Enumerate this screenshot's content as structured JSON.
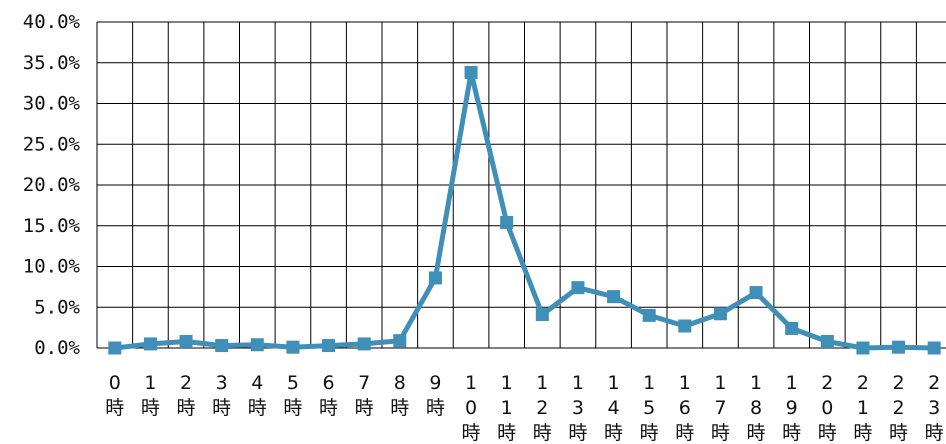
{
  "chart_data": {
    "type": "line",
    "title": "",
    "xlabel": "",
    "ylabel": "",
    "categories": [
      "0時",
      "1時",
      "2時",
      "3時",
      "4時",
      "5時",
      "6時",
      "7時",
      "8時",
      "9時",
      "10時",
      "11時",
      "12時",
      "13時",
      "14時",
      "15時",
      "16時",
      "17時",
      "18時",
      "19時",
      "20時",
      "21時",
      "22時",
      "23時"
    ],
    "series": [
      {
        "values": [
          0.0,
          0.5,
          0.8,
          0.3,
          0.4,
          0.1,
          0.3,
          0.5,
          0.9,
          8.6,
          33.8,
          15.4,
          4.1,
          7.4,
          6.3,
          4.0,
          2.7,
          4.2,
          6.8,
          2.4,
          0.8,
          0.0,
          0.1,
          0.0
        ],
        "color": "#3f8fb9"
      }
    ],
    "ylim": [
      0,
      40
    ],
    "yticks": [
      "0.0%",
      "5.0%",
      "10.0%",
      "15.0%",
      "20.0%",
      "25.0%",
      "30.0%",
      "35.0%",
      "40.0%"
    ],
    "grid": true,
    "legend": "none"
  }
}
